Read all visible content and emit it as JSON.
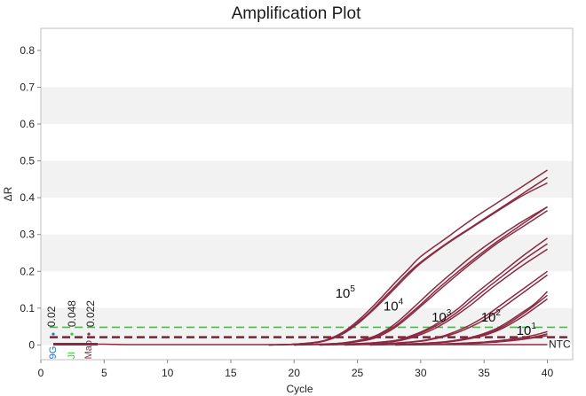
{
  "chart_data": {
    "type": "line",
    "title": "Amplification Plot",
    "xlabel": "Cycle",
    "ylabel": "ΔR",
    "xlim": [
      0,
      42
    ],
    "ylim": [
      -0.04,
      0.86
    ],
    "xticks": [
      0,
      5,
      10,
      15,
      20,
      25,
      30,
      35,
      40
    ],
    "yticks": [
      0,
      0.1,
      0.2,
      0.3,
      0.4,
      0.5,
      0.6,
      0.7,
      0.8
    ],
    "xtick_labels": [
      "0",
      "5",
      "10",
      "15",
      "20",
      "25",
      "30",
      "35",
      "40"
    ],
    "ytick_labels": [
      "0",
      "0.1",
      "0.2",
      "0.3",
      "0.4",
      "0.5",
      "0.6",
      "0.7",
      "0.8"
    ],
    "background_bands": true,
    "series_color": "#8b2a42",
    "series": [
      {
        "x": [
          18,
          20,
          22,
          23,
          24,
          25,
          26,
          27,
          28,
          29,
          30,
          32,
          34,
          36,
          38,
          40
        ],
        "values": [
          0,
          0.002,
          0.008,
          0.018,
          0.035,
          0.06,
          0.09,
          0.125,
          0.16,
          0.195,
          0.225,
          0.275,
          0.32,
          0.365,
          0.41,
          0.455
        ]
      },
      {
        "x": [
          18,
          20,
          22,
          23,
          24,
          25,
          26,
          27,
          28,
          29,
          30,
          32,
          34,
          36,
          38,
          40
        ],
        "values": [
          0,
          0.002,
          0.009,
          0.02,
          0.038,
          0.065,
          0.097,
          0.133,
          0.17,
          0.205,
          0.24,
          0.29,
          0.34,
          0.385,
          0.43,
          0.475
        ]
      },
      {
        "x": [
          18,
          20,
          22,
          23,
          24,
          25,
          26,
          27,
          28,
          29,
          30,
          32,
          34,
          36,
          38,
          40
        ],
        "values": [
          0,
          0.002,
          0.008,
          0.017,
          0.033,
          0.057,
          0.087,
          0.12,
          0.155,
          0.19,
          0.222,
          0.273,
          0.318,
          0.362,
          0.405,
          0.44
        ]
      },
      {
        "x": [
          20,
          22,
          24,
          26,
          27,
          28,
          29,
          30,
          31,
          32,
          34,
          36,
          38,
          40
        ],
        "values": [
          0,
          0.002,
          0.006,
          0.02,
          0.035,
          0.058,
          0.088,
          0.12,
          0.152,
          0.182,
          0.24,
          0.29,
          0.335,
          0.375
        ]
      },
      {
        "x": [
          20,
          22,
          24,
          26,
          27,
          28,
          29,
          30,
          31,
          32,
          34,
          36,
          38,
          40
        ],
        "values": [
          0,
          0.002,
          0.006,
          0.018,
          0.032,
          0.052,
          0.08,
          0.11,
          0.142,
          0.172,
          0.228,
          0.28,
          0.328,
          0.375
        ]
      },
      {
        "x": [
          20,
          22,
          24,
          26,
          27,
          28,
          29,
          30,
          31,
          32,
          34,
          36,
          38,
          40
        ],
        "values": [
          0,
          0.002,
          0.005,
          0.015,
          0.028,
          0.048,
          0.075,
          0.105,
          0.135,
          0.165,
          0.222,
          0.275,
          0.32,
          0.365
        ]
      },
      {
        "x": [
          22,
          24,
          26,
          28,
          29,
          30,
          31,
          32,
          33,
          34,
          35,
          36,
          38,
          40
        ],
        "values": [
          0,
          0.002,
          0.005,
          0.012,
          0.022,
          0.035,
          0.052,
          0.075,
          0.1,
          0.13,
          0.158,
          0.185,
          0.24,
          0.29
        ]
      },
      {
        "x": [
          22,
          24,
          26,
          28,
          29,
          30,
          31,
          32,
          33,
          34,
          35,
          36,
          38,
          40
        ],
        "values": [
          0,
          0.002,
          0.005,
          0.012,
          0.02,
          0.032,
          0.048,
          0.068,
          0.092,
          0.12,
          0.148,
          0.175,
          0.228,
          0.275
        ]
      },
      {
        "x": [
          22,
          24,
          26,
          28,
          29,
          30,
          31,
          32,
          33,
          34,
          35,
          36,
          38,
          40
        ],
        "values": [
          0,
          0.002,
          0.004,
          0.01,
          0.017,
          0.028,
          0.043,
          0.062,
          0.085,
          0.11,
          0.138,
          0.165,
          0.215,
          0.26
        ]
      },
      {
        "x": [
          24,
          26,
          28,
          30,
          31,
          32,
          33,
          34,
          35,
          36,
          37,
          38,
          39,
          40
        ],
        "values": [
          0,
          0.002,
          0.005,
          0.01,
          0.016,
          0.024,
          0.035,
          0.05,
          0.068,
          0.09,
          0.115,
          0.14,
          0.165,
          0.19
        ]
      },
      {
        "x": [
          24,
          26,
          28,
          30,
          31,
          32,
          33,
          34,
          35,
          36,
          37,
          38,
          39,
          40
        ],
        "values": [
          0,
          0.002,
          0.005,
          0.011,
          0.018,
          0.027,
          0.04,
          0.056,
          0.076,
          0.1,
          0.125,
          0.15,
          0.175,
          0.2
        ]
      },
      {
        "x": [
          26,
          28,
          30,
          32,
          33,
          34,
          35,
          36,
          37,
          38,
          39,
          40
        ],
        "values": [
          0,
          0.002,
          0.004,
          0.008,
          0.012,
          0.018,
          0.026,
          0.038,
          0.055,
          0.076,
          0.1,
          0.125
        ]
      },
      {
        "x": [
          26,
          28,
          30,
          32,
          33,
          34,
          35,
          36,
          37,
          38,
          39,
          40
        ],
        "values": [
          0,
          0.002,
          0.004,
          0.008,
          0.012,
          0.019,
          0.028,
          0.041,
          0.06,
          0.083,
          0.108,
          0.135
        ]
      },
      {
        "x": [
          26,
          28,
          30,
          32,
          33,
          34,
          35,
          36,
          37,
          38,
          39,
          40
        ],
        "values": [
          0,
          0.002,
          0.004,
          0.009,
          0.014,
          0.021,
          0.031,
          0.045,
          0.065,
          0.088,
          0.112,
          0.145
        ]
      },
      {
        "x": [
          28,
          30,
          32,
          34,
          35,
          36,
          37,
          38,
          39,
          40
        ],
        "values": [
          0,
          0.001,
          0.003,
          0.005,
          0.007,
          0.009,
          0.012,
          0.016,
          0.022,
          0.03
        ]
      },
      {
        "x": [
          28,
          30,
          32,
          34,
          35,
          36,
          37,
          38,
          39,
          40
        ],
        "values": [
          0,
          0.001,
          0.003,
          0.006,
          0.008,
          0.011,
          0.015,
          0.02,
          0.027,
          0.036
        ]
      },
      {
        "x": [
          28,
          30,
          32,
          34,
          35,
          36,
          37,
          38,
          39,
          40
        ],
        "values": [
          0,
          0.001,
          0.002,
          0.004,
          0.006,
          0.008,
          0.011,
          0.015,
          0.02,
          0.025
        ]
      },
      {
        "x": [
          1,
          3,
          5,
          7,
          10,
          15,
          20,
          25,
          30,
          35,
          40
        ],
        "values": [
          0.002,
          0.002,
          0.002,
          0.001,
          0.001,
          0.001,
          0.001,
          0.001,
          0.001,
          0.001,
          0.001
        ]
      }
    ],
    "thresholds": [
      {
        "value": 0.048,
        "label": "0.048",
        "color": "#33cc33"
      },
      {
        "value": 0.022,
        "label": "0.022",
        "color": "#7a2338"
      },
      {
        "value": 0.02,
        "label": "0.02",
        "color": "#7a2338"
      }
    ],
    "magnitude_labels": [
      {
        "base": "10",
        "exp": "5",
        "x": 24.8,
        "y": 0.14
      },
      {
        "base": "10",
        "exp": "4",
        "x": 28.6,
        "y": 0.105
      },
      {
        "base": "10",
        "exp": "3",
        "x": 32.4,
        "y": 0.075
      },
      {
        "base": "10",
        "exp": "2",
        "x": 36.3,
        "y": 0.075
      },
      {
        "base": "10",
        "exp": "1",
        "x": 39.1,
        "y": 0.04
      }
    ],
    "ntc_label": "NTC",
    "annotations": [
      "0.02",
      "0.048",
      "0.022"
    ],
    "legend_markers": [
      {
        "text": "9G",
        "color": "#2e6fd0"
      },
      {
        "text": "JI",
        "color": "#33cc33"
      },
      {
        "text": "Mao",
        "color": "#8b2a42"
      }
    ]
  }
}
